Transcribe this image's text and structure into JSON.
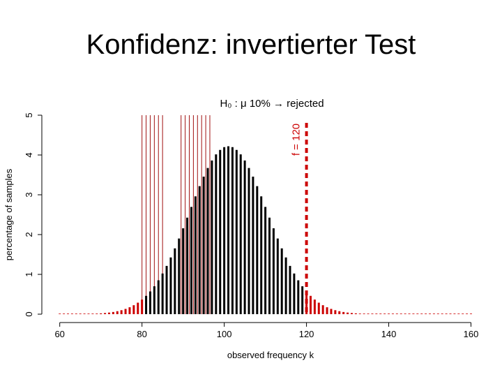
{
  "slide": {
    "title": "Konfidenz: invertierter Test"
  },
  "chart_data": {
    "type": "bar",
    "title": "H₀ : μ    10% → rejected",
    "xlabel": "observed frequency k",
    "ylabel": "percentage of samples",
    "xlim": [
      57,
      165
    ],
    "ylim": [
      0,
      5
    ],
    "xticks": [
      60,
      80,
      100,
      120,
      140,
      160
    ],
    "yticks": [
      0,
      1,
      2,
      3,
      4,
      5
    ],
    "grid": false,
    "colors": {
      "accepted": "#000000",
      "rejected": "#cc0000",
      "band": "#a01010"
    },
    "acceptance_region": [
      81,
      119
    ],
    "distribution": {
      "mean": 101,
      "sd": 9.5,
      "peak": 4.22
    },
    "observed": {
      "value": 120,
      "label": "f = 120"
    },
    "red_bands": [
      {
        "from": 80,
        "to": 85.5
      },
      {
        "from": 89.5,
        "to": 96.5
      }
    ]
  }
}
